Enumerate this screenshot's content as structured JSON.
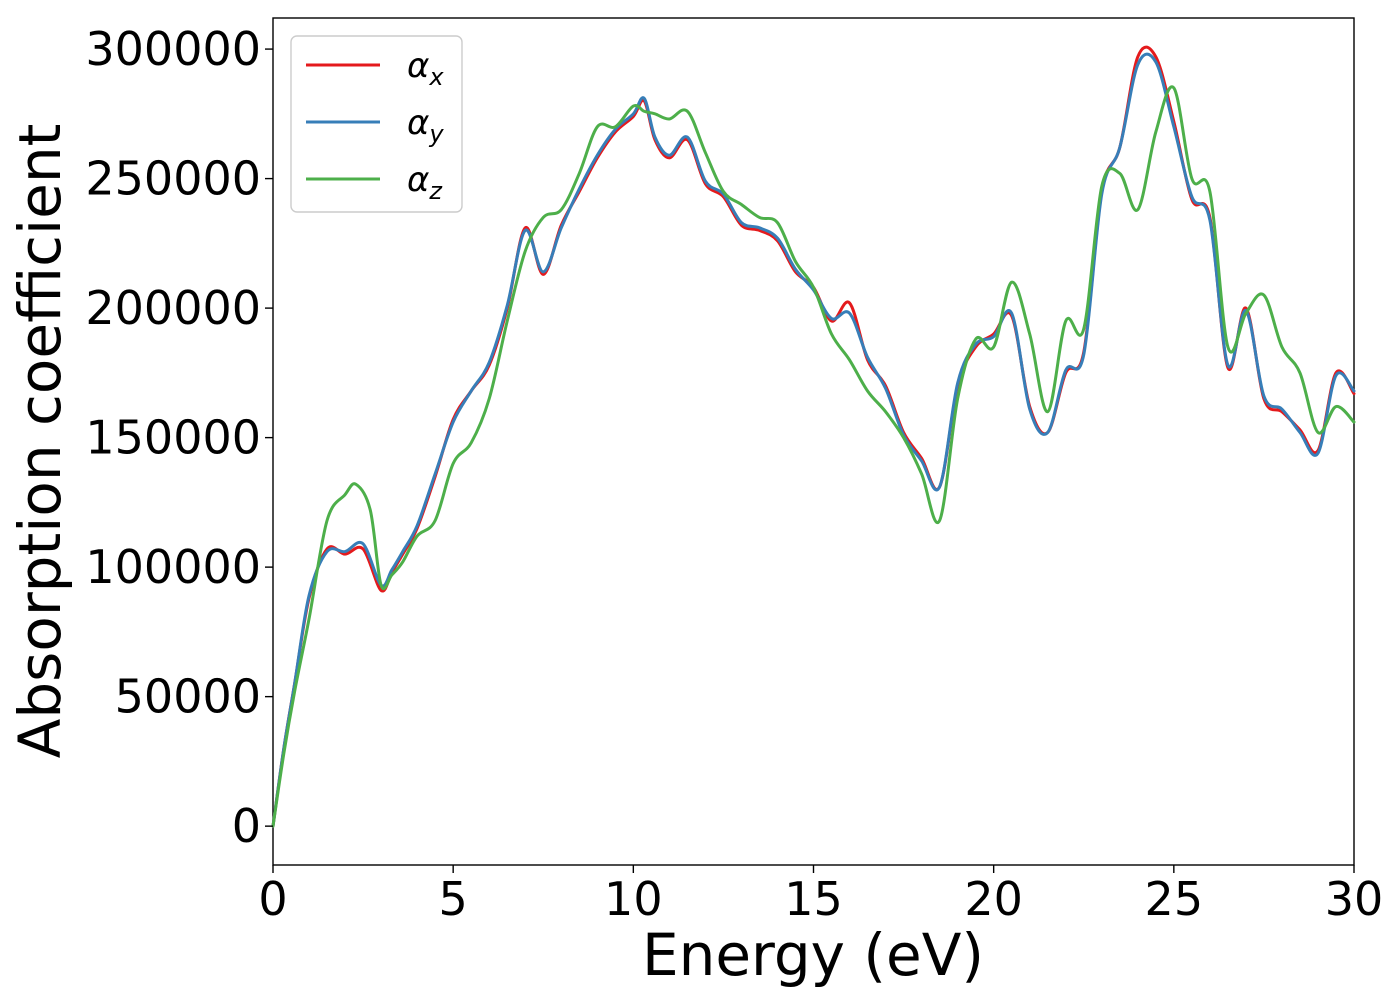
{
  "chart_data": {
    "type": "line",
    "title": "",
    "xlabel": "Energy (eV)",
    "ylabel": "Absorption coefficient",
    "xlim": [
      0,
      30
    ],
    "ylim": [
      -15000,
      312000
    ],
    "xticks": [
      0,
      5,
      10,
      15,
      20,
      25,
      30
    ],
    "xtick_labels": [
      "0",
      "5",
      "10",
      "15",
      "20",
      "25",
      "30"
    ],
    "yticks": [
      0,
      50000,
      100000,
      150000,
      200000,
      250000,
      300000
    ],
    "ytick_labels": [
      "0",
      "50000",
      "100000",
      "150000",
      "200000",
      "250000",
      "300000"
    ],
    "grid": false,
    "legend": {
      "position": "top-left",
      "entries": [
        {
          "symbol": "α",
          "subscript": "x",
          "color": "#e41a1c"
        },
        {
          "symbol": "α",
          "subscript": "y",
          "color": "#377eb8"
        },
        {
          "symbol": "α",
          "subscript": "z",
          "color": "#4daf4a"
        }
      ]
    },
    "series": [
      {
        "color": "#e41a1c",
        "x": [
          0,
          0.3,
          0.6,
          1.0,
          1.5,
          2.0,
          2.5,
          3.0,
          3.3,
          3.6,
          4.0,
          4.5,
          5.0,
          5.5,
          6.0,
          6.5,
          7.0,
          7.5,
          8.0,
          8.5,
          9.0,
          9.5,
          10.0,
          10.3,
          10.6,
          11.0,
          11.5,
          12.0,
          12.5,
          13.0,
          13.5,
          14.0,
          14.5,
          15.0,
          15.5,
          16.0,
          16.5,
          17.0,
          17.5,
          18.0,
          18.5,
          19.0,
          19.5,
          20.0,
          20.5,
          21.0,
          21.5,
          22.0,
          22.5,
          23.0,
          23.5,
          24.0,
          24.5,
          25.0,
          25.5,
          26.0,
          26.5,
          27.0,
          27.5,
          28.0,
          28.5,
          29.0,
          29.5,
          30.0
        ],
        "values": [
          0,
          30000,
          55000,
          88000,
          107000,
          105000,
          107000,
          91000,
          98000,
          105000,
          115000,
          135000,
          157000,
          168000,
          178000,
          200000,
          231000,
          213000,
          232000,
          245000,
          258000,
          268000,
          274000,
          280000,
          265000,
          258000,
          265000,
          248000,
          243000,
          232000,
          230000,
          226000,
          214000,
          208000,
          195000,
          202000,
          180000,
          170000,
          152000,
          142000,
          131000,
          170000,
          185000,
          190000,
          197000,
          162000,
          152000,
          175000,
          183000,
          245000,
          262000,
          297000,
          297000,
          272000,
          242000,
          235000,
          177000,
          200000,
          165000,
          160000,
          153000,
          145000,
          175000,
          167000
        ]
      },
      {
        "color": "#377eb8",
        "x": [
          0,
          0.3,
          0.6,
          1.0,
          1.5,
          2.0,
          2.5,
          3.0,
          3.3,
          3.6,
          4.0,
          4.5,
          5.0,
          5.5,
          6.0,
          6.5,
          7.0,
          7.5,
          8.0,
          8.5,
          9.0,
          9.5,
          10.0,
          10.3,
          10.6,
          11.0,
          11.5,
          12.0,
          12.5,
          13.0,
          13.5,
          14.0,
          14.5,
          15.0,
          15.5,
          16.0,
          16.5,
          17.0,
          17.5,
          18.0,
          18.5,
          19.0,
          19.5,
          20.0,
          20.5,
          21.0,
          21.5,
          22.0,
          22.5,
          23.0,
          23.5,
          24.0,
          24.5,
          25.0,
          25.5,
          26.0,
          26.5,
          27.0,
          27.5,
          28.0,
          28.5,
          29.0,
          29.5,
          30.0
        ],
        "values": [
          0,
          30000,
          55000,
          89000,
          106000,
          106000,
          109000,
          93000,
          99000,
          106000,
          116000,
          136000,
          156000,
          168000,
          179000,
          201000,
          230000,
          214000,
          231000,
          246000,
          259000,
          269000,
          275000,
          281000,
          266000,
          259000,
          266000,
          249000,
          244000,
          233000,
          231000,
          227000,
          215000,
          207000,
          196000,
          198000,
          181000,
          169000,
          151000,
          141000,
          131000,
          171000,
          186000,
          189000,
          198000,
          161000,
          152000,
          176000,
          182000,
          244000,
          262000,
          294000,
          295000,
          270000,
          243000,
          234000,
          178000,
          199000,
          166000,
          161000,
          152000,
          144000,
          174000,
          168000
        ]
      },
      {
        "color": "#4daf4a",
        "x": [
          0,
          0.3,
          0.6,
          1.0,
          1.5,
          2.0,
          2.3,
          2.7,
          3.0,
          3.3,
          3.6,
          4.0,
          4.5,
          5.0,
          5.5,
          6.0,
          6.5,
          7.0,
          7.5,
          8.0,
          8.5,
          9.0,
          9.5,
          10.0,
          10.3,
          10.6,
          11.0,
          11.5,
          12.0,
          12.5,
          13.0,
          13.5,
          14.0,
          14.5,
          15.0,
          15.5,
          16.0,
          16.5,
          17.0,
          17.5,
          18.0,
          18.5,
          19.0,
          19.5,
          20.0,
          20.5,
          21.0,
          21.5,
          22.0,
          22.5,
          23.0,
          23.5,
          24.0,
          24.5,
          25.0,
          25.5,
          26.0,
          26.5,
          27.0,
          27.5,
          28.0,
          28.5,
          29.0,
          29.5,
          30.0
        ],
        "values": [
          0,
          28000,
          52000,
          80000,
          118000,
          128000,
          132000,
          122000,
          93000,
          97000,
          102000,
          112000,
          118000,
          140000,
          148000,
          165000,
          195000,
          222000,
          235000,
          238000,
          252000,
          270000,
          270000,
          278000,
          276000,
          275000,
          273000,
          276000,
          260000,
          245000,
          240000,
          235000,
          233000,
          218000,
          208000,
          190000,
          180000,
          168000,
          160000,
          150000,
          136000,
          118000,
          165000,
          188000,
          185000,
          210000,
          190000,
          160000,
          195000,
          192000,
          247000,
          252000,
          238000,
          268000,
          285000,
          250000,
          245000,
          185000,
          198000,
          205000,
          185000,
          175000,
          152000,
          162000,
          156000
        ]
      }
    ]
  }
}
